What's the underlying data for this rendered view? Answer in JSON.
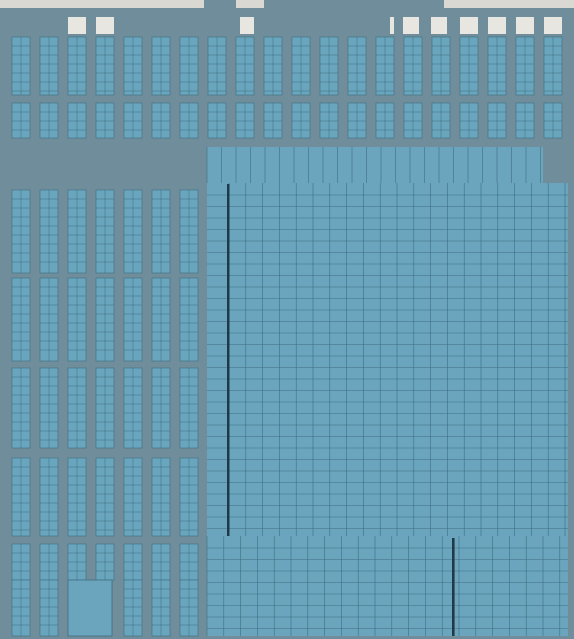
{
  "scene": {
    "subject": "",
    "colors": {
      "background": "#d9d8d3",
      "roof_concrete": "#6f8d9a",
      "roof_concrete_dark": "#5f7c88",
      "panel_fill": "#69a5bd",
      "panel_fill_light": "#74b0c7",
      "panel_grid_line": "#3f6e82",
      "panel_shadow_edge": "#1d3a48",
      "gap_light": "#e8e6e1"
    }
  }
}
